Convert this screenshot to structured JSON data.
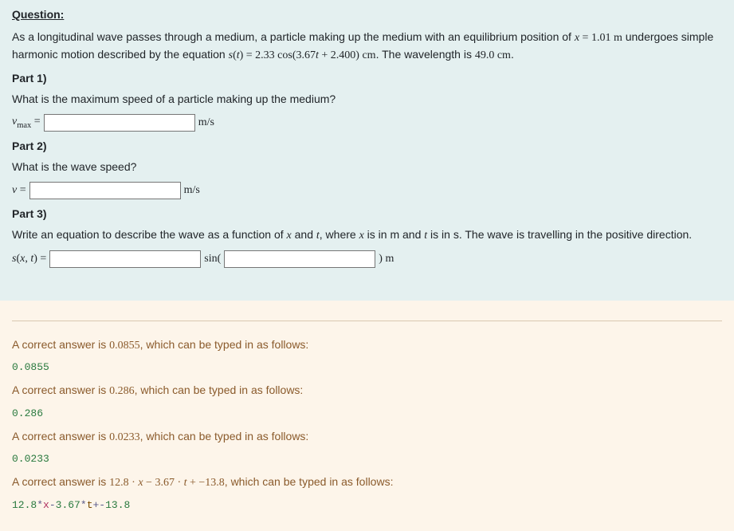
{
  "question": {
    "heading": "Question:",
    "intro_pre": "As a longitudinal wave passes through a medium, a particle making up the medium with an equilibrium position of ",
    "eq_x": "x = 1.01 m",
    "intro_mid": " undergoes simple harmonic motion described by the equation ",
    "eq_s": "s(t) = 2.33 cos(3.67t + 2.400) cm",
    "intro_post": ". The wavelength is ",
    "wavelength": "49.0 cm",
    "intro_end": ".",
    "part1_head": "Part 1)",
    "part1_q": "What is the maximum speed of a particle making up the medium?",
    "part1_lhs_v": "v",
    "part1_lhs_sub": "max",
    "eqsign": " = ",
    "part1_unit": "m/s",
    "part2_head": "Part 2)",
    "part2_q": "What is the wave speed?",
    "part2_lhs": "v = ",
    "part2_unit": "m/s",
    "part3_head": "Part 3)",
    "part3_q_pre": "Write an equation to describe the wave as a function of ",
    "part3_x": "x",
    "part3_and": " and ",
    "part3_t": "t",
    "part3_where": ", where ",
    "part3_xin": " is in m and ",
    "part3_tin": " is in s. The wave is travelling in the positive direction.",
    "part3_lhs": "s(x, t) = ",
    "part3_sin_pre": "sin(",
    "part3_sin_post": ") m"
  },
  "answers": {
    "a1_text_pre": "A correct answer is ",
    "a1_val": "0.0855",
    "typed_as": ", which can be typed in as follows:",
    "a1_code": "0.0855",
    "a2_val": "0.286",
    "a2_code": "0.286",
    "a3_val": "0.0233",
    "a3_code": "0.0233",
    "a4_val": "12.8 · x − 3.67 · t + −13.8",
    "a4_code_n1": "12.8",
    "a4_code_op1": "*",
    "a4_code_x": "x",
    "a4_code_op2": "-",
    "a4_code_n2": "3.67",
    "a4_code_op3": "*",
    "a4_code_t": "t",
    "a4_code_op4": "+-",
    "a4_code_n3": "13.8"
  }
}
